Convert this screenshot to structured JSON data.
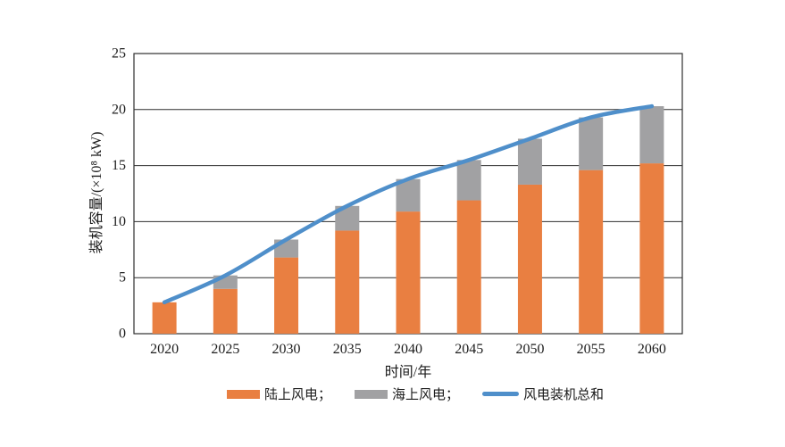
{
  "chart_data": {
    "type": "bar",
    "subtype": "stacked-bars-with-total-line",
    "categories": [
      "2020",
      "2025",
      "2030",
      "2035",
      "2040",
      "2045",
      "2050",
      "2055",
      "2060"
    ],
    "series": [
      {
        "name": "陆上风电",
        "type": "bar",
        "color": "#E97F41",
        "values": [
          2.8,
          4.0,
          6.8,
          9.2,
          10.9,
          11.9,
          13.3,
          14.6,
          15.2
        ]
      },
      {
        "name": "海上风电",
        "type": "bar",
        "color": "#A1A1A3",
        "values": [
          0,
          1.2,
          1.6,
          2.2,
          2.9,
          3.6,
          4.1,
          4.7,
          5.1
        ]
      },
      {
        "name": "风电装机总和",
        "type": "line",
        "color": "#4F8FCA",
        "values": [
          2.8,
          5.2,
          8.4,
          11.4,
          13.8,
          15.5,
          17.4,
          19.3,
          20.3
        ]
      }
    ],
    "title": "",
    "xlabel": "时间/年",
    "ylabel": "装机容量/(×10⁸ kW)",
    "ylim": [
      0,
      25
    ],
    "yticks": [
      0,
      5,
      10,
      15,
      20,
      25
    ],
    "grid": "horizontal",
    "plot_border": true,
    "legend_position": "bottom",
    "axis_color": "#2f2f2f"
  },
  "legend": {
    "items": [
      {
        "label": "陆上风电；",
        "swatch": "bar",
        "color": "#E97F41"
      },
      {
        "label": "海上风电；",
        "swatch": "bar",
        "color": "#A1A1A3"
      },
      {
        "label": "风电装机总和",
        "swatch": "line",
        "color": "#4F8FCA"
      }
    ]
  },
  "axes": {
    "x_title": "时间/年",
    "y_title": "装机容量/(×10⁸ kW)"
  }
}
